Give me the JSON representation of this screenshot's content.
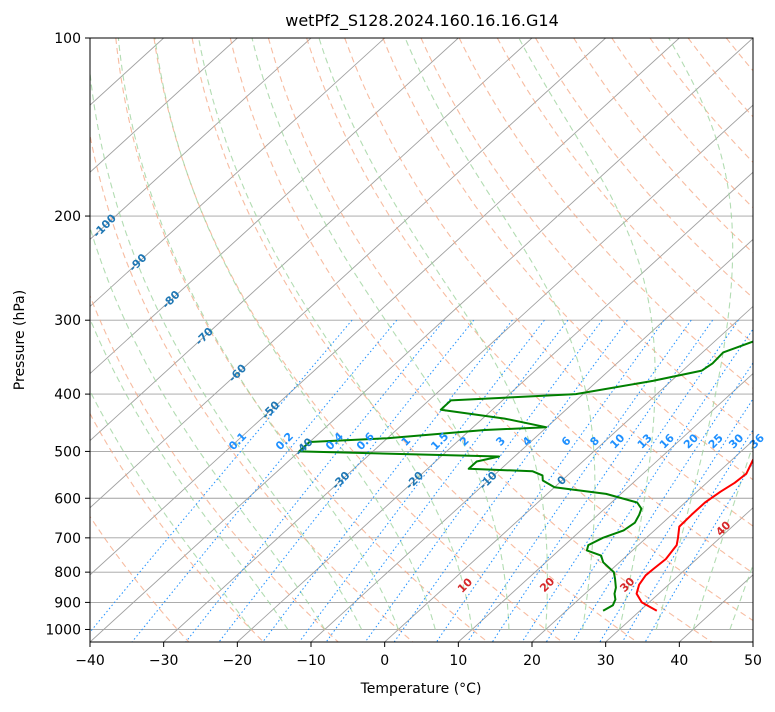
{
  "chart_data": {
    "type": "line",
    "title": "wetPf2_S128.2024.160.16.16.G14",
    "xlabel": "Temperature (°C)",
    "ylabel": "Pressure (hPa)",
    "xlim": [
      -40,
      50
    ],
    "ylim": [
      1050,
      100
    ],
    "y_scale": "log",
    "grid": true,
    "x_ticks": [
      -40,
      -30,
      -20,
      -10,
      0,
      10,
      20,
      30,
      40,
      50
    ],
    "y_ticks": [
      100,
      200,
      300,
      400,
      500,
      600,
      700,
      800,
      900,
      1000
    ],
    "series": [
      {
        "role": "temperature",
        "color": "#ff0000",
        "points": [
          [
            930,
            32.3
          ],
          [
            900,
            29.0
          ],
          [
            870,
            27.0
          ],
          [
            840,
            26.0
          ],
          [
            810,
            25.5
          ],
          [
            790,
            25.6
          ],
          [
            760,
            25.8
          ],
          [
            720,
            25.2
          ],
          [
            700,
            24.3
          ],
          [
            670,
            22.8
          ],
          [
            640,
            22.7
          ],
          [
            610,
            22.7
          ],
          [
            585,
            23.2
          ],
          [
            565,
            23.8
          ],
          [
            545,
            24.0
          ],
          [
            520,
            23.0
          ],
          [
            495,
            22.0
          ],
          [
            470,
            21.3
          ],
          [
            440,
            20.6
          ],
          [
            400,
            19.6
          ],
          [
            370,
            18.1
          ],
          [
            350,
            16.2
          ],
          [
            330,
            14.8
          ],
          [
            310,
            13.8
          ],
          [
            295,
            13.6
          ],
          [
            280,
            12.9
          ],
          [
            260,
            11.7
          ],
          [
            240,
            10.4
          ],
          [
            220,
            8.8
          ],
          [
            200,
            7.5
          ],
          [
            185,
            6.2
          ],
          [
            174,
            5.5
          ],
          [
            170,
            5.4
          ],
          [
            160,
            6.0
          ],
          [
            150,
            5.1
          ],
          [
            140,
            4.2
          ],
          [
            130,
            3.5
          ],
          [
            120,
            3.3
          ],
          [
            110,
            2.8
          ],
          [
            100,
            2.3
          ]
        ]
      },
      {
        "role": "dewpoint",
        "color": "#008000",
        "points": [
          [
            930,
            25.0
          ],
          [
            910,
            25.5
          ],
          [
            890,
            25.0
          ],
          [
            870,
            24.0
          ],
          [
            850,
            23.3
          ],
          [
            820,
            21.8
          ],
          [
            800,
            20.7
          ],
          [
            770,
            17.8
          ],
          [
            750,
            16.5
          ],
          [
            735,
            13.8
          ],
          [
            720,
            13.2
          ],
          [
            700,
            14.1
          ],
          [
            680,
            15.8
          ],
          [
            660,
            16.2
          ],
          [
            640,
            15.6
          ],
          [
            625,
            15.0
          ],
          [
            610,
            13.5
          ],
          [
            590,
            8.0
          ],
          [
            575,
            0.0
          ],
          [
            560,
            -2.6
          ],
          [
            549,
            -3.4
          ],
          [
            540,
            -5.4
          ],
          [
            535,
            -14.4
          ],
          [
            520,
            -14.4
          ],
          [
            510,
            -12.1
          ],
          [
            500,
            -40.0
          ],
          [
            482,
            -40.0
          ],
          [
            475,
            -30.0
          ],
          [
            460,
            -18.0
          ],
          [
            455,
            -10.1
          ],
          [
            440,
            -17.0
          ],
          [
            425,
            -27.0
          ],
          [
            410,
            -27.0
          ],
          [
            400,
            -11.0
          ],
          [
            380,
            -2.5
          ],
          [
            365,
            2.6
          ],
          [
            355,
            3.0
          ],
          [
            340,
            2.8
          ],
          [
            325,
            5.4
          ],
          [
            310,
            10.6
          ],
          [
            300,
            11.0
          ],
          [
            285,
            7.2
          ],
          [
            270,
            5.0
          ],
          [
            255,
            4.1
          ],
          [
            240,
            3.7
          ],
          [
            225,
            2.6
          ],
          [
            210,
            2.0
          ],
          [
            200,
            1.5
          ],
          [
            185,
            0.2
          ],
          [
            170,
            -4.4
          ],
          [
            160,
            -6.1
          ],
          [
            150,
            -5.8
          ],
          [
            140,
            -4.7
          ],
          [
            130,
            -3.6
          ],
          [
            120,
            -2.4
          ],
          [
            110,
            -0.8
          ],
          [
            100,
            2.1
          ]
        ]
      }
    ],
    "dry_adiabat_labels": [
      "-100",
      "-90",
      "-80",
      "-70",
      "-60",
      "-50",
      "-40",
      "-30",
      "-20",
      "-10",
      "0"
    ],
    "moist_adiabat_labels": [
      "10",
      "20",
      "30",
      "40"
    ],
    "mixing_ratio_labels": [
      "0.1",
      "0.2",
      "0.4",
      "0.6",
      "1",
      "1.5",
      "2",
      "3",
      "4",
      "6",
      "8",
      "10",
      "13",
      "16",
      "20",
      "25",
      "30",
      "36"
    ]
  },
  "colors": {
    "isotherm": "#a0a0a0",
    "isobar": "#a0a0a0",
    "dry_adiabat": "#f4a582",
    "moist_adiabat": "#9fd39f",
    "mixing_ratio": "#1e90ff",
    "axis": "#000000"
  }
}
